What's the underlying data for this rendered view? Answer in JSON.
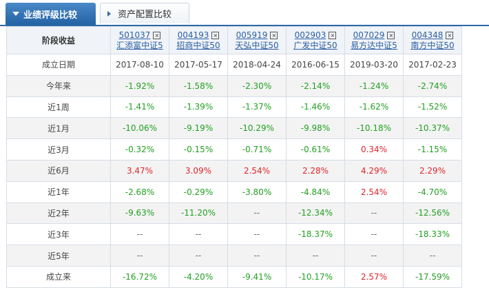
{
  "tabs": {
    "active": "业绩评级比较",
    "inactive": "资产配置比较"
  },
  "table": {
    "header_label": "阶段收益",
    "funds": [
      {
        "code": "501037",
        "name": "汇添富中证5"
      },
      {
        "code": "004193",
        "name": "招商中证50"
      },
      {
        "code": "005919",
        "name": "天弘中证50"
      },
      {
        "code": "002903",
        "name": "广发中证50"
      },
      {
        "code": "007029",
        "name": "易方达中证5"
      },
      {
        "code": "004348",
        "name": "南方中证50"
      }
    ],
    "close_glyph": "×",
    "rows": [
      {
        "label": "成立日期",
        "type": "date",
        "values": [
          "2017-08-10",
          "2017-05-17",
          "2018-04-24",
          "2016-06-15",
          "2019-03-20",
          "2017-02-23"
        ]
      },
      {
        "label": "今年来",
        "values": [
          "-1.92%",
          "-1.58%",
          "-2.30%",
          "-2.14%",
          "-1.24%",
          "-2.74%"
        ]
      },
      {
        "label": "近1周",
        "values": [
          "-1.41%",
          "-1.39%",
          "-1.37%",
          "-1.46%",
          "-1.62%",
          "-1.52%"
        ]
      },
      {
        "label": "近1月",
        "values": [
          "-10.06%",
          "-9.19%",
          "-10.29%",
          "-9.98%",
          "-10.18%",
          "-10.37%"
        ]
      },
      {
        "label": "近3月",
        "values": [
          "-0.32%",
          "-0.15%",
          "-0.71%",
          "-0.61%",
          "0.34%",
          "-1.15%"
        ]
      },
      {
        "label": "近6月",
        "values": [
          "3.47%",
          "3.09%",
          "2.54%",
          "2.28%",
          "4.29%",
          "2.29%"
        ]
      },
      {
        "label": "近1年",
        "values": [
          "-2.68%",
          "-0.29%",
          "-3.80%",
          "-4.84%",
          "2.54%",
          "-4.70%"
        ]
      },
      {
        "label": "近2年",
        "values": [
          "-9.63%",
          "-11.20%",
          "--",
          "-12.34%",
          "--",
          "-12.56%"
        ]
      },
      {
        "label": "近3年",
        "values": [
          "--",
          "--",
          "--",
          "-18.37%",
          "--",
          "-18.33%"
        ]
      },
      {
        "label": "近5年",
        "values": [
          "--",
          "--",
          "--",
          "--",
          "--",
          "--"
        ]
      },
      {
        "label": "成立来",
        "values": [
          "-16.72%",
          "-4.20%",
          "-9.41%",
          "-10.17%",
          "2.57%",
          "-17.59%"
        ]
      }
    ]
  },
  "colors": {
    "positive": "#e0262b",
    "negative": "#21a021",
    "link": "#2b5fa5",
    "tab_active": "#2b6aa8"
  }
}
